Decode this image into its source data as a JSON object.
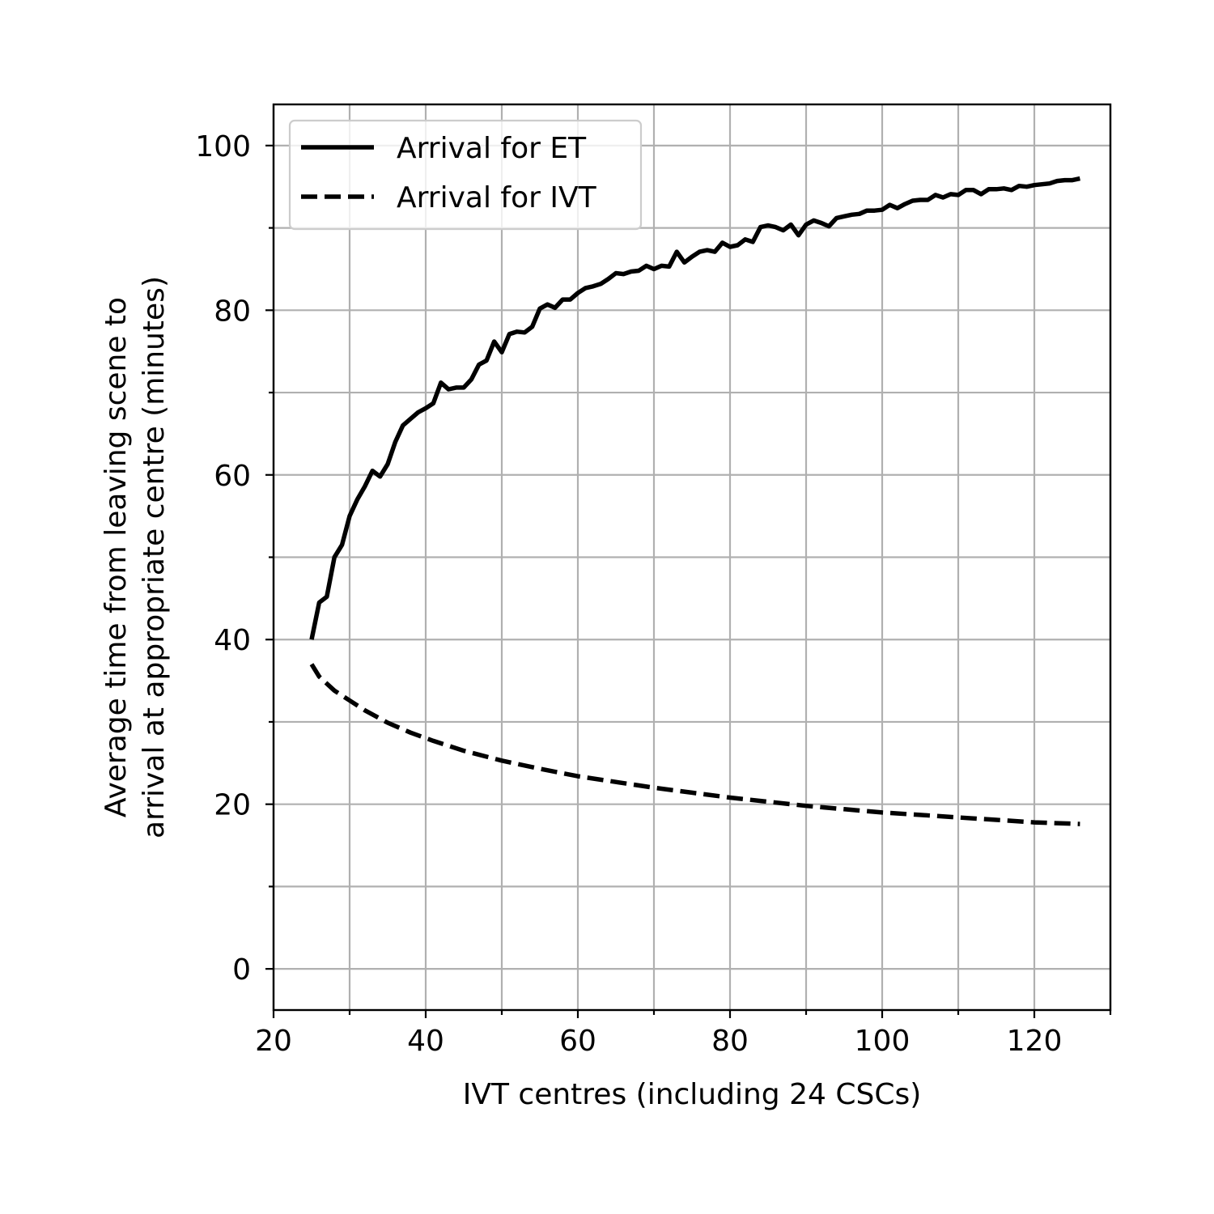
{
  "chart_data": {
    "type": "line",
    "xlabel": "IVT centres (including 24 CSCs)",
    "ylabel": [
      "Average time from leaving scene to",
      "arrival at appropriate centre (minutes)"
    ],
    "xlim": [
      20,
      130
    ],
    "ylim": [
      -5,
      105
    ],
    "xticks": [
      20,
      40,
      60,
      80,
      100,
      120
    ],
    "yticks": [
      0,
      20,
      40,
      60,
      80,
      100
    ],
    "xminor_step": 10,
    "yminor_step": 10,
    "grid": true,
    "legend_position": "upper-left",
    "series": [
      {
        "name": "Arrival for ET",
        "style": "solid",
        "color": "#000000",
        "x": [
          25,
          26,
          27,
          28,
          29,
          30,
          31,
          32,
          33,
          34,
          35,
          36,
          37,
          38,
          39,
          40,
          41,
          42,
          43,
          44,
          45,
          46,
          47,
          48,
          49,
          50,
          51,
          52,
          53,
          54,
          55,
          56,
          57,
          58,
          59,
          60,
          61,
          62,
          63,
          64,
          65,
          66,
          67,
          68,
          69,
          70,
          71,
          72,
          73,
          74,
          75,
          76,
          77,
          78,
          79,
          80,
          81,
          82,
          83,
          84,
          85,
          86,
          87,
          88,
          89,
          90,
          91,
          92,
          93,
          94,
          95,
          96,
          97,
          98,
          99,
          100,
          101,
          102,
          103,
          104,
          105,
          106,
          107,
          108,
          109,
          110,
          111,
          112,
          113,
          114,
          115,
          116,
          117,
          118,
          119,
          120,
          121,
          122,
          123,
          124,
          125,
          126
        ],
        "y": [
          40,
          44.5,
          45.2,
          50,
          51.5,
          55,
          57,
          58.6,
          60.5,
          59.8,
          61.3,
          64,
          66,
          66.8,
          67.6,
          68.1,
          68.7,
          71.2,
          70.4,
          70.6,
          70.6,
          71.6,
          73.4,
          73.9,
          76.2,
          74.9,
          77.1,
          77.4,
          77.3,
          78,
          80.2,
          80.7,
          80.3,
          81.3,
          81.3,
          82.1,
          82.7,
          82.9,
          83.2,
          83.8,
          84.5,
          84.4,
          84.7,
          84.8,
          85.4,
          85,
          85.4,
          85.3,
          87.1,
          85.8,
          86.5,
          87.1,
          87.3,
          87.1,
          88.2,
          87.7,
          87.9,
          88.6,
          88.3,
          90.1,
          90.3,
          90.1,
          89.7,
          90.4,
          89.1,
          90.4,
          90.9,
          90.6,
          90.2,
          91.2,
          91.4,
          91.6,
          91.7,
          92.1,
          92.1,
          92.2,
          92.8,
          92.4,
          92.9,
          93.3,
          93.4,
          93.4,
          94,
          93.7,
          94.1,
          94,
          94.6,
          94.6,
          94.1,
          94.7,
          94.7,
          94.8,
          94.6,
          95.1,
          95,
          95.2,
          95.3,
          95.4,
          95.7,
          95.8,
          95.8,
          96
        ]
      },
      {
        "name": "Arrival for IVT",
        "style": "dashed",
        "color": "#000000",
        "x": [
          25,
          26,
          28,
          30,
          32,
          35,
          38,
          41,
          45,
          50,
          55,
          60,
          65,
          70,
          75,
          80,
          85,
          90,
          95,
          100,
          105,
          110,
          115,
          120,
          126
        ],
        "y": [
          37,
          35.5,
          33.8,
          32.6,
          31.4,
          29.9,
          28.7,
          27.7,
          26.5,
          25.3,
          24.3,
          23.4,
          22.7,
          22.0,
          21.4,
          20.8,
          20.3,
          19.8,
          19.4,
          19.0,
          18.7,
          18.4,
          18.1,
          17.8,
          17.6
        ]
      }
    ]
  }
}
